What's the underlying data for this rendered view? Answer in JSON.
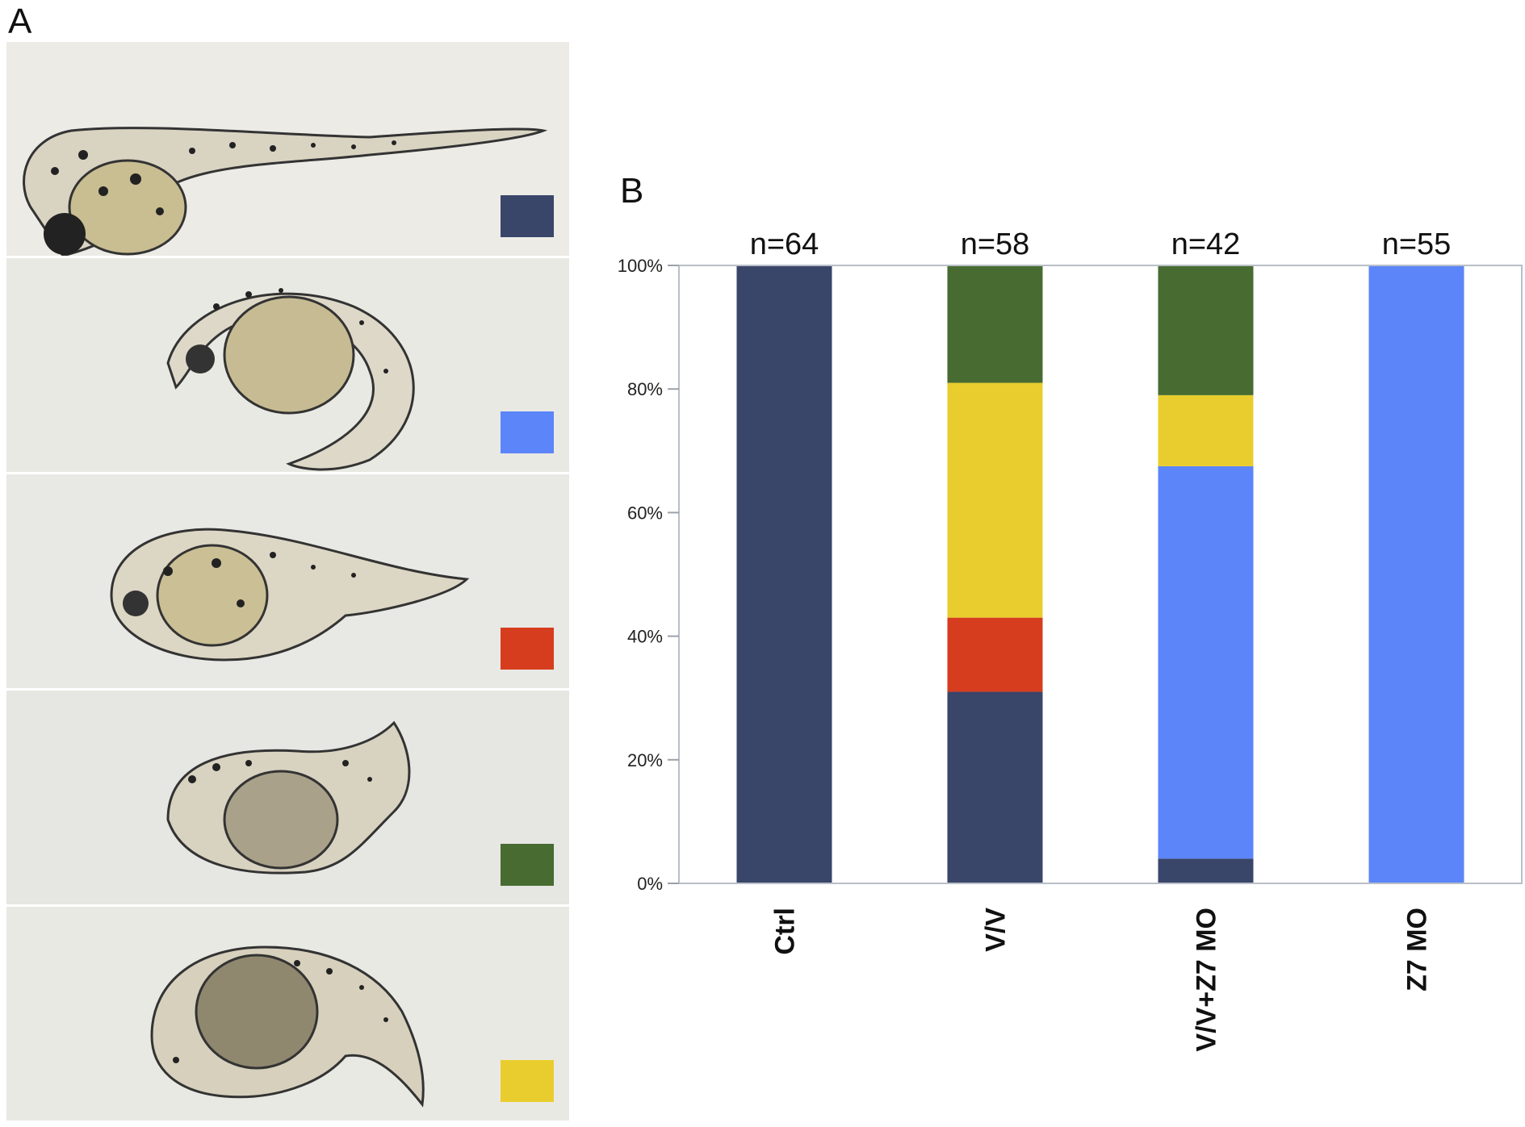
{
  "panel_a": {
    "label": "A",
    "legend_swatches": [
      {
        "phenotype": "embryo-1",
        "color": "#3a456a"
      },
      {
        "phenotype": "embryo-2",
        "color": "#5b85f8"
      },
      {
        "phenotype": "embryo-3",
        "color": "#d63d1f"
      },
      {
        "phenotype": "embryo-4",
        "color": "#476b31"
      },
      {
        "phenotype": "embryo-5",
        "color": "#e9cd2e"
      }
    ]
  },
  "panel_b": {
    "label": "B"
  },
  "chart_data": {
    "type": "bar",
    "stacked": true,
    "categories": [
      "Ctrl",
      "V/V",
      "V/V+Z7 MO",
      "Z7 MO"
    ],
    "group_labels": [
      "n=64",
      "n=58",
      "n=42",
      "n=55"
    ],
    "ylim": [
      0,
      100
    ],
    "yticks": [
      "0%",
      "20%",
      "40%",
      "60%",
      "80%",
      "100%"
    ],
    "ytick_values": [
      0,
      20,
      40,
      60,
      80,
      100
    ],
    "grid": false,
    "series": [
      {
        "color": "#3a456a",
        "values": [
          100,
          31,
          4,
          0
        ]
      },
      {
        "color": "#5b85f8",
        "values": [
          0,
          0,
          63.5,
          100
        ]
      },
      {
        "color": "#d63d1f",
        "values": [
          0,
          12,
          0,
          0
        ]
      },
      {
        "color": "#e9cd2e",
        "values": [
          0,
          38,
          11.5,
          0
        ]
      },
      {
        "color": "#476b31",
        "values": [
          0,
          19,
          21,
          0
        ]
      }
    ]
  }
}
